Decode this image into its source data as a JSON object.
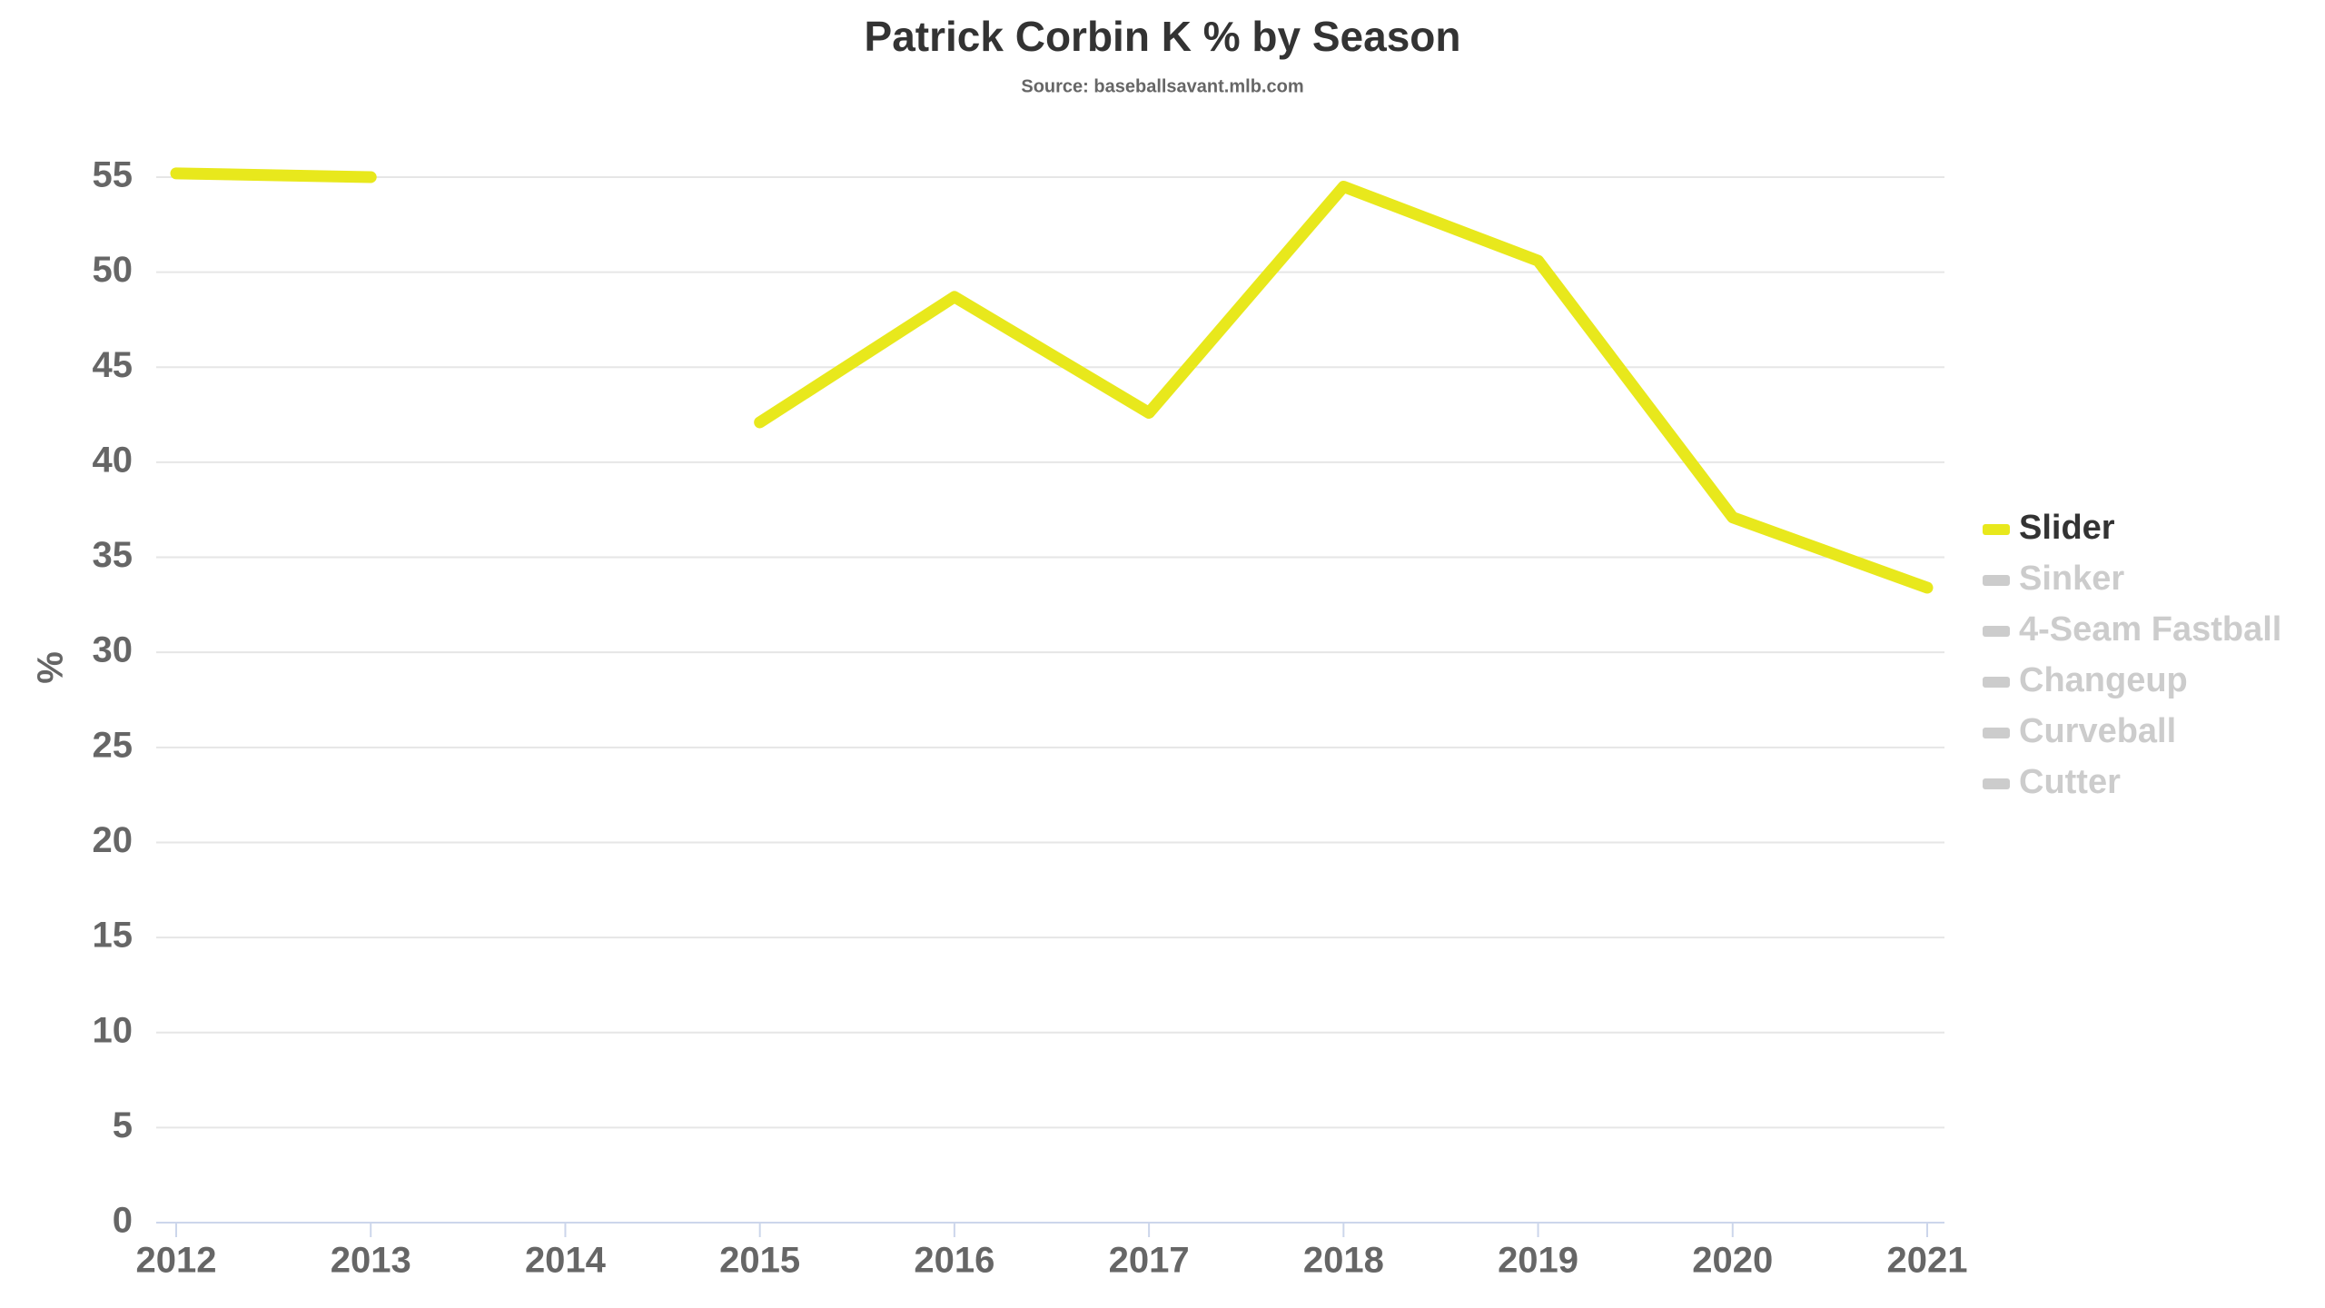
{
  "chart_data": {
    "type": "line",
    "title": "Patrick Corbin K % by Season",
    "subtitle": "Source: baseballsavant.mlb.com",
    "y_label": "%",
    "categories": [
      "2012",
      "2013",
      "2014",
      "2015",
      "2016",
      "2017",
      "2018",
      "2019",
      "2020",
      "2021"
    ],
    "series": [
      {
        "name": "Slider",
        "color": "#e8e81c",
        "values": [
          55.2,
          55.0,
          null,
          42.1,
          48.7,
          42.6,
          54.5,
          50.6,
          37.1,
          33.4
        ]
      }
    ],
    "inactive_legend": {
      "color": "#cccccc",
      "names": [
        "Sinker",
        "4-Seam Fastball",
        "Changeup",
        "Curveball",
        "Cutter"
      ]
    },
    "ylim": [
      0,
      55
    ],
    "yticks": [
      0,
      5,
      10,
      15,
      20,
      25,
      30,
      35,
      40,
      45,
      50,
      55
    ],
    "grid": true,
    "legend": "right"
  }
}
